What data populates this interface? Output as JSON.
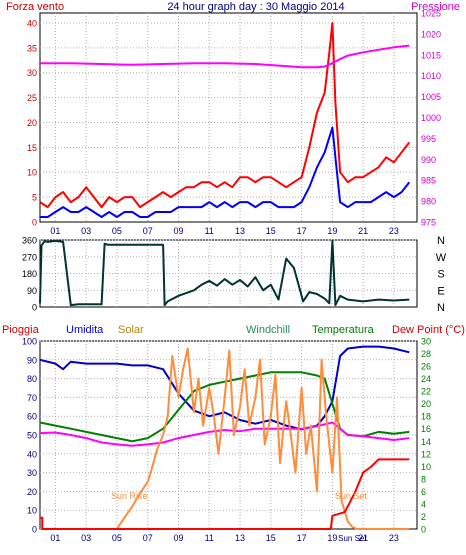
{
  "chart_data": [
    {
      "type": "line",
      "title": "24 hour graph day : 30 Maggio 2014",
      "left_axis_label": "Forza vento",
      "right_axis_label": "Pressione",
      "x_ticks": [
        "01",
        "03",
        "05",
        "07",
        "09",
        "11",
        "13",
        "15",
        "17",
        "19",
        "21",
        "23"
      ],
      "left_ticks": [
        0,
        5,
        10,
        15,
        20,
        25,
        30,
        35,
        40
      ],
      "right_ticks": [
        975,
        980,
        985,
        990,
        995,
        1000,
        1005,
        1010,
        1015,
        1020,
        1025
      ],
      "xlim": [
        0,
        24.5
      ],
      "ylim_left": [
        0,
        42
      ],
      "ylim_right": [
        975,
        1025
      ],
      "grid": true,
      "series": [
        {
          "name": "gust",
          "color": "#ff0000",
          "axis": "left",
          "x": [
            0,
            0.5,
            1,
            1.5,
            2,
            2.5,
            3,
            3.5,
            4,
            4.5,
            5,
            5.5,
            6,
            6.5,
            7,
            7.5,
            8,
            8.5,
            9,
            9.5,
            10,
            10.5,
            11,
            11.5,
            12,
            12.5,
            13,
            13.5,
            14,
            14.5,
            15,
            15.5,
            16,
            16.5,
            17,
            17.5,
            18,
            18.5,
            18.8,
            19,
            19.2,
            19.5,
            20,
            20.5,
            21,
            21.5,
            22,
            22.5,
            23,
            23.5,
            24
          ],
          "y": [
            4,
            3,
            5,
            6,
            4,
            5,
            7,
            5,
            3,
            5,
            4,
            5,
            5,
            3,
            4,
            5,
            6,
            5,
            6,
            7,
            7,
            8,
            8,
            7,
            8,
            7,
            9,
            9,
            8,
            9,
            9,
            8,
            7,
            8,
            9,
            15,
            22,
            26,
            34,
            40,
            24,
            10,
            8,
            9,
            9,
            10,
            11,
            13,
            12,
            14,
            16
          ]
        },
        {
          "name": "speed",
          "color": "#0000ff",
          "axis": "left",
          "x": [
            0,
            0.5,
            1,
            1.5,
            2,
            2.5,
            3,
            3.5,
            4,
            4.5,
            5,
            5.5,
            6,
            6.5,
            7,
            7.5,
            8,
            8.5,
            9,
            9.5,
            10,
            10.5,
            11,
            11.5,
            12,
            12.5,
            13,
            13.5,
            14,
            14.5,
            15,
            15.5,
            16,
            16.5,
            17,
            17.5,
            18,
            18.5,
            18.8,
            19,
            19.2,
            19.5,
            20,
            20.5,
            21,
            21.5,
            22,
            22.5,
            23,
            23.5,
            24
          ],
          "y": [
            1,
            1,
            2,
            3,
            2,
            2,
            3,
            2,
            1,
            2,
            1,
            2,
            2,
            1,
            1,
            2,
            2,
            2,
            3,
            3,
            3,
            3,
            4,
            3,
            4,
            3,
            4,
            4,
            3,
            4,
            4,
            3,
            3,
            3,
            4,
            7,
            11,
            14,
            17,
            19,
            13,
            4,
            3,
            4,
            4,
            4,
            5,
            6,
            5,
            6,
            8
          ]
        },
        {
          "name": "Pressione",
          "color": "#ff00ff",
          "axis": "right",
          "x": [
            0,
            2,
            4,
            6,
            8,
            10,
            12,
            14,
            16,
            17,
            18,
            18.5,
            19,
            19.5,
            20,
            21,
            22,
            23,
            24
          ],
          "y": [
            1013,
            1013,
            1012.8,
            1012.6,
            1012.8,
            1013,
            1013,
            1012.8,
            1012.3,
            1012,
            1012,
            1012.2,
            1013,
            1014,
            1014.8,
            1015.6,
            1016.2,
            1016.8,
            1017.2
          ]
        }
      ]
    },
    {
      "type": "line",
      "left_ticks": [
        0,
        90,
        180,
        270,
        360
      ],
      "right_labels": [
        "N",
        "W",
        "S",
        "E",
        "N"
      ],
      "ylim": [
        0,
        360
      ],
      "grid": true,
      "series": [
        {
          "name": "direction",
          "color": "#003333",
          "x": [
            0,
            0.1,
            0.3,
            0.5,
            1,
            1.5,
            2,
            2.5,
            3,
            3.5,
            4,
            4.2,
            4.4,
            5,
            5.5,
            6,
            6.5,
            7,
            7.5,
            8,
            8.1,
            8.3,
            9,
            10,
            10.5,
            11,
            11.5,
            12,
            12.5,
            13,
            13.5,
            14,
            14.5,
            15,
            15.5,
            16,
            16.5,
            16.9,
            17.1,
            17.5,
            18,
            18.5,
            18.8,
            19,
            19.2,
            19.5,
            20,
            21,
            22,
            23,
            24
          ],
          "y": [
            20,
            330,
            355,
            350,
            355,
            350,
            10,
            15,
            15,
            15,
            15,
            340,
            335,
            335,
            335,
            335,
            335,
            335,
            335,
            335,
            10,
            30,
            60,
            90,
            120,
            140,
            115,
            150,
            120,
            145,
            110,
            160,
            90,
            120,
            40,
            260,
            210,
            90,
            30,
            80,
            70,
            45,
            20,
            355,
            10,
            60,
            40,
            30,
            40,
            35,
            40
          ]
        }
      ]
    },
    {
      "type": "line",
      "left_ticks": [
        0,
        10,
        20,
        30,
        40,
        50,
        60,
        70,
        80,
        90,
        100
      ],
      "right_ticks": [
        0,
        2,
        4,
        6,
        8,
        10,
        12,
        14,
        16,
        18,
        20,
        22,
        24,
        26,
        28,
        30
      ],
      "ylim_left": [
        0,
        100
      ],
      "ylim_right": [
        0,
        30
      ],
      "grid": true,
      "legend": [
        "Pioggia",
        "Umidita",
        "Solar",
        "Windchill",
        "Temperatura",
        "Dew Point (°C)"
      ],
      "annotations": [
        "Sun Rise",
        "Sun Set"
      ],
      "x_ticks": [
        "01",
        "03",
        "05",
        "07",
        "09",
        "11",
        "13",
        "15",
        "17",
        "19",
        "21",
        "23"
      ],
      "x_extra_label": "Sun Set",
      "series": [
        {
          "name": "Umidita",
          "color": "#0000cc",
          "axis": "left",
          "x": [
            0,
            1,
            1.5,
            2,
            3,
            4,
            5,
            6,
            7,
            8,
            9,
            10,
            11,
            12,
            13,
            14,
            15,
            16,
            17,
            18,
            18.5,
            19,
            19.5,
            20,
            21,
            22,
            23,
            24
          ],
          "y": [
            90,
            88,
            85,
            89,
            88,
            88,
            88,
            87,
            87,
            85,
            72,
            63,
            60,
            62,
            58,
            56,
            58,
            55,
            53,
            55,
            60,
            68,
            92,
            96,
            97,
            97,
            96,
            94
          ]
        },
        {
          "name": "Temperatura",
          "color": "#008000",
          "axis": "right",
          "x": [
            0,
            1,
            2,
            3,
            4,
            5,
            6,
            7,
            8,
            9,
            10,
            11,
            12,
            13,
            14,
            15,
            16,
            17,
            18,
            18.5,
            19,
            19.5,
            20,
            21,
            22,
            23,
            24
          ],
          "y": [
            17,
            16.5,
            16,
            15.5,
            15,
            14.5,
            14,
            14.5,
            16,
            19,
            22,
            23,
            23.5,
            24,
            24.5,
            25,
            25,
            25,
            24.5,
            24,
            20,
            16,
            15,
            14.8,
            15.5,
            15.2,
            15.5
          ]
        },
        {
          "name": "Dew Point (°C)",
          "color": "#ff00ff",
          "axis": "right",
          "x": [
            0,
            1,
            2,
            3,
            4,
            5,
            6,
            7,
            8,
            9,
            10,
            11,
            12,
            13,
            14,
            15,
            16,
            17,
            18,
            19,
            20,
            21,
            22,
            23,
            24
          ],
          "y": [
            15.3,
            15.4,
            15,
            14.5,
            13.8,
            13.5,
            13.3,
            13.5,
            13.8,
            14.5,
            15,
            15.5,
            15.8,
            15.6,
            16,
            16,
            16,
            16,
            16.4,
            17,
            15,
            14.8,
            14.5,
            14.2,
            14.5
          ]
        },
        {
          "name": "Solar",
          "color": "#ff8c3a",
          "axis": "left",
          "x": [
            0,
            5,
            5.4,
            6,
            6.5,
            7,
            7.3,
            7.6,
            8,
            8.3,
            8.6,
            9,
            9.3,
            9.6,
            10,
            10.3,
            10.6,
            11,
            11.3,
            11.6,
            12,
            12.3,
            12.6,
            13,
            13.3,
            13.6,
            14,
            14.3,
            14.6,
            15,
            15.3,
            15.6,
            16,
            16.3,
            16.6,
            17,
            17.3,
            17.6,
            18,
            18.3,
            18.6,
            19,
            19.3,
            19.6,
            20,
            20.3,
            20.6,
            21,
            24
          ],
          "y": [
            0,
            0,
            5,
            12,
            19,
            25,
            33,
            42,
            50,
            60,
            92,
            70,
            85,
            96,
            62,
            80,
            55,
            75,
            60,
            40,
            70,
            95,
            50,
            65,
            85,
            55,
            70,
            90,
            45,
            60,
            82,
            35,
            68,
            50,
            30,
            75,
            40,
            55,
            20,
            90,
            60,
            30,
            70,
            15,
            4,
            1,
            0,
            0,
            0
          ]
        },
        {
          "name": "Pioggia",
          "color": "#ff0000",
          "axis": "left",
          "x": [
            0,
            0.15,
            0.15,
            1,
            18.9,
            19,
            19.8,
            20,
            20.5,
            21,
            21.5,
            22,
            22.5,
            24
          ],
          "y": [
            6,
            6,
            0,
            0,
            0,
            7,
            9,
            12,
            20,
            30,
            33,
            37,
            37,
            37
          ]
        }
      ]
    }
  ]
}
